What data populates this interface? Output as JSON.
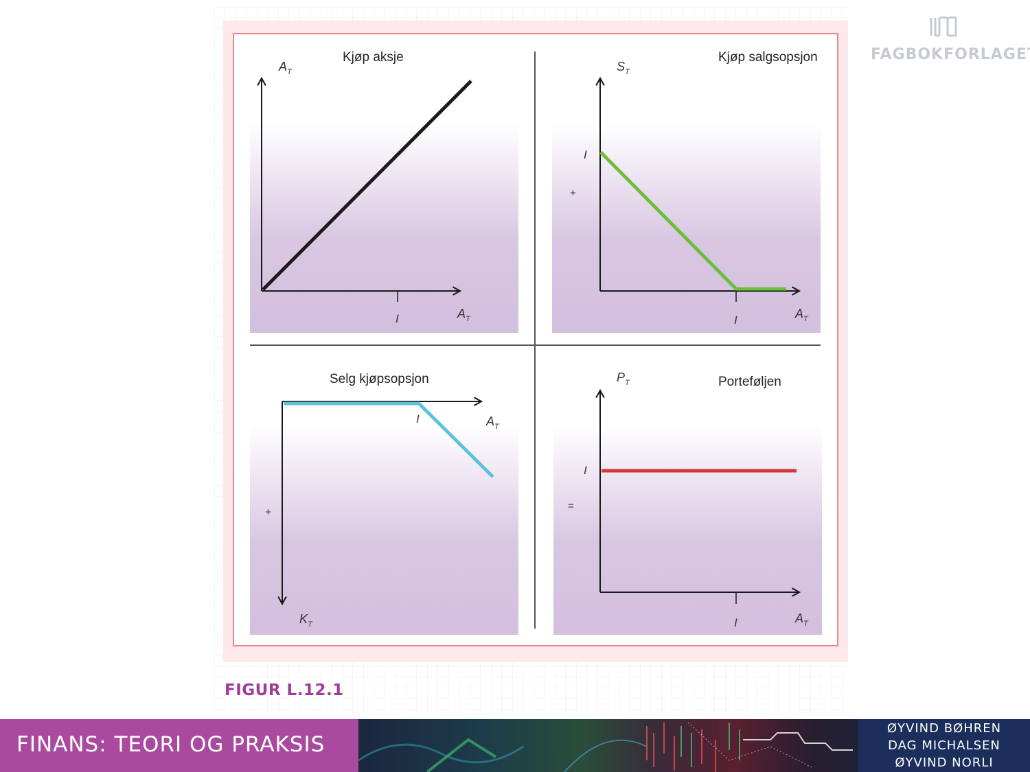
{
  "logo": {
    "text": "FAGBOKFORLAGET"
  },
  "figure": {
    "label": "FIGUR L.12.1",
    "panels": {
      "top_left": {
        "title": "Kjøp aksje",
        "y_axis": "A",
        "y_sub": "T",
        "x_axis": "A",
        "x_sub": "T",
        "tick": "I"
      },
      "top_right": {
        "title": "Kjøp salgsopsjon",
        "y_axis": "S",
        "y_sub": "T",
        "x_axis": "A",
        "x_sub": "T",
        "tick_y": "I",
        "tick_x": "I",
        "sign": "+"
      },
      "bottom_left": {
        "title": "Selg kjøpsopsjon",
        "y_axis": "K",
        "y_sub": "T",
        "x_axis": "A",
        "x_sub": "T",
        "tick": "I",
        "sign": "+"
      },
      "bottom_right": {
        "title": "Porteføljen",
        "y_axis": "P",
        "y_sub": "T",
        "x_axis": "A",
        "x_sub": "T",
        "tick_y": "I",
        "tick_x": "I",
        "sign": "="
      }
    },
    "line_colors": {
      "stock": "#1a1a1a",
      "put": "#6cbf3a",
      "call": "#5cc3d8",
      "portfolio": "#d2373c"
    },
    "frame_color": "#e8868b"
  },
  "footer": {
    "title": "FINANS: TEORI OG PRAKSIS",
    "authors": [
      "ØYVIND BØHREN",
      "DAG MICHALSEN",
      "ØYVIND NORLI"
    ],
    "accent": "#a94a9e",
    "author_bg": "#1c2e5b"
  }
}
